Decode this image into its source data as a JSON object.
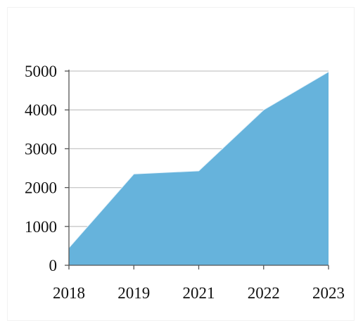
{
  "chart_data": {
    "type": "area",
    "title": "",
    "xlabel": "",
    "ylabel": "",
    "categories": [
      "2018",
      "2019",
      "2021",
      "2022",
      "2023"
    ],
    "series": [
      {
        "values": [
          450,
          2350,
          2430,
          4000,
          4980
        ]
      }
    ],
    "ylim": [
      0,
      5000
    ],
    "yticks": [
      0,
      1000,
      2000,
      3000,
      4000,
      5000
    ],
    "grid": "horizontal",
    "legend": "none",
    "colors": {
      "fill": "#66b3dc",
      "grid": "#c8c8c8",
      "axis": "#555555"
    }
  }
}
